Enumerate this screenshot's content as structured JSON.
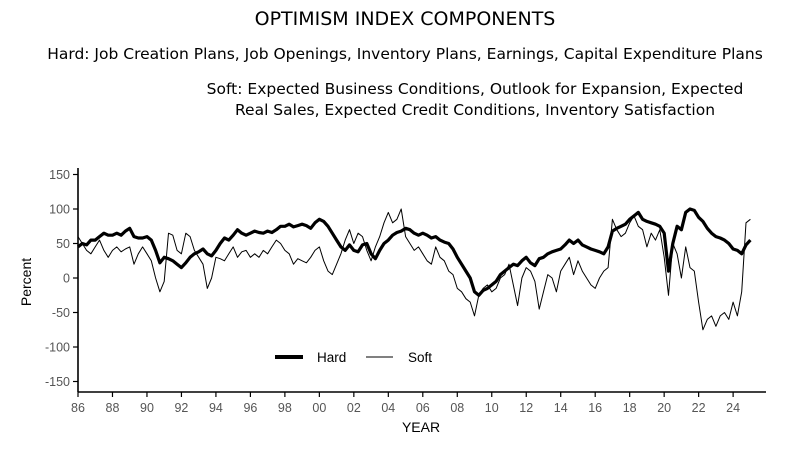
{
  "chart_data": {
    "type": "line",
    "title": "OPTIMISM INDEX COMPONENTS",
    "subtitle_hard": "Hard: Job Creation Plans, Job Openings, Inventory Plans, Earnings, Capital Expenditure Plans",
    "subtitle_soft": "Soft: Expected Business Conditions, Outlook for Expansion, Expected Real Sales, Expected Credit Conditions, Inventory Satisfaction",
    "xlabel": "YEAR",
    "ylabel": "Percent",
    "xlim": [
      1986,
      2026.1
    ],
    "ylim": [
      -165,
      160
    ],
    "x_ticks": [
      1986,
      1988,
      1990,
      1992,
      1994,
      1996,
      1998,
      2000,
      2002,
      2004,
      2006,
      2008,
      2010,
      2012,
      2014,
      2016,
      2018,
      2020,
      2022,
      2024
    ],
    "x_tick_labels": [
      "86",
      "88",
      "90",
      "92",
      "94",
      "96",
      "98",
      "00",
      "02",
      "04",
      "06",
      "08",
      "10",
      "12",
      "14",
      "16",
      "18",
      "20",
      "22",
      "24"
    ],
    "y_ticks": [
      150,
      100,
      50,
      0,
      -50,
      -100,
      -150
    ],
    "y_tick_labels": [
      "150",
      "100",
      "50",
      "0",
      "-50",
      "-100",
      "-150"
    ],
    "grid": false,
    "legend_position": "bottom-center",
    "x_start": 1986,
    "x_step": 0.25,
    "series": [
      {
        "name": "Hard",
        "values": [
          45,
          50,
          48,
          55,
          55,
          60,
          65,
          62,
          62,
          65,
          62,
          68,
          72,
          60,
          58,
          58,
          60,
          55,
          40,
          22,
          30,
          28,
          25,
          20,
          15,
          22,
          30,
          35,
          38,
          42,
          35,
          32,
          40,
          50,
          58,
          55,
          62,
          70,
          65,
          62,
          65,
          68,
          66,
          65,
          68,
          66,
          70,
          75,
          75,
          78,
          74,
          76,
          78,
          76,
          72,
          80,
          85,
          82,
          75,
          65,
          55,
          45,
          40,
          48,
          40,
          38,
          48,
          50,
          35,
          28,
          40,
          50,
          55,
          62,
          66,
          68,
          72,
          70,
          65,
          62,
          65,
          62,
          58,
          60,
          55,
          52,
          50,
          42,
          30,
          20,
          10,
          0,
          -20,
          -25,
          -18,
          -15,
          -10,
          -5,
          5,
          10,
          15,
          20,
          18,
          25,
          30,
          22,
          18,
          28,
          30,
          35,
          38,
          40,
          42,
          48,
          55,
          50,
          55,
          48,
          45,
          42,
          40,
          38,
          35,
          45,
          68,
          72,
          75,
          78,
          85,
          90,
          95,
          85,
          82,
          80,
          78,
          75,
          65,
          10,
          50,
          75,
          70,
          95,
          100,
          98,
          88,
          82,
          72,
          65,
          60,
          58,
          55,
          50,
          42,
          40,
          35,
          48,
          55
        ]
      },
      {
        "name": "Soft",
        "values": [
          60,
          50,
          40,
          35,
          45,
          55,
          40,
          30,
          40,
          45,
          38,
          42,
          45,
          20,
          35,
          45,
          35,
          25,
          0,
          -20,
          -5,
          65,
          62,
          40,
          35,
          65,
          60,
          40,
          30,
          20,
          -15,
          0,
          30,
          28,
          25,
          35,
          45,
          30,
          38,
          40,
          30,
          35,
          30,
          40,
          35,
          45,
          55,
          50,
          40,
          35,
          20,
          28,
          25,
          22,
          30,
          40,
          45,
          25,
          10,
          5,
          20,
          35,
          55,
          70,
          50,
          65,
          60,
          40,
          25,
          45,
          60,
          80,
          95,
          80,
          85,
          100,
          60,
          50,
          40,
          45,
          35,
          25,
          20,
          45,
          30,
          25,
          10,
          5,
          -15,
          -20,
          -30,
          -35,
          -55,
          -25,
          -15,
          -10,
          -20,
          -15,
          0,
          5,
          20,
          -10,
          -40,
          0,
          15,
          10,
          -5,
          -45,
          -20,
          5,
          0,
          -20,
          10,
          20,
          30,
          5,
          25,
          10,
          0,
          -10,
          -15,
          0,
          10,
          15,
          85,
          70,
          60,
          65,
          80,
          90,
          75,
          70,
          45,
          65,
          55,
          70,
          30,
          -25,
          50,
          35,
          0,
          45,
          15,
          10,
          -35,
          -75,
          -60,
          -55,
          -70,
          -55,
          -50,
          -60,
          -35,
          -55,
          -20,
          80,
          85
        ]
      }
    ]
  }
}
